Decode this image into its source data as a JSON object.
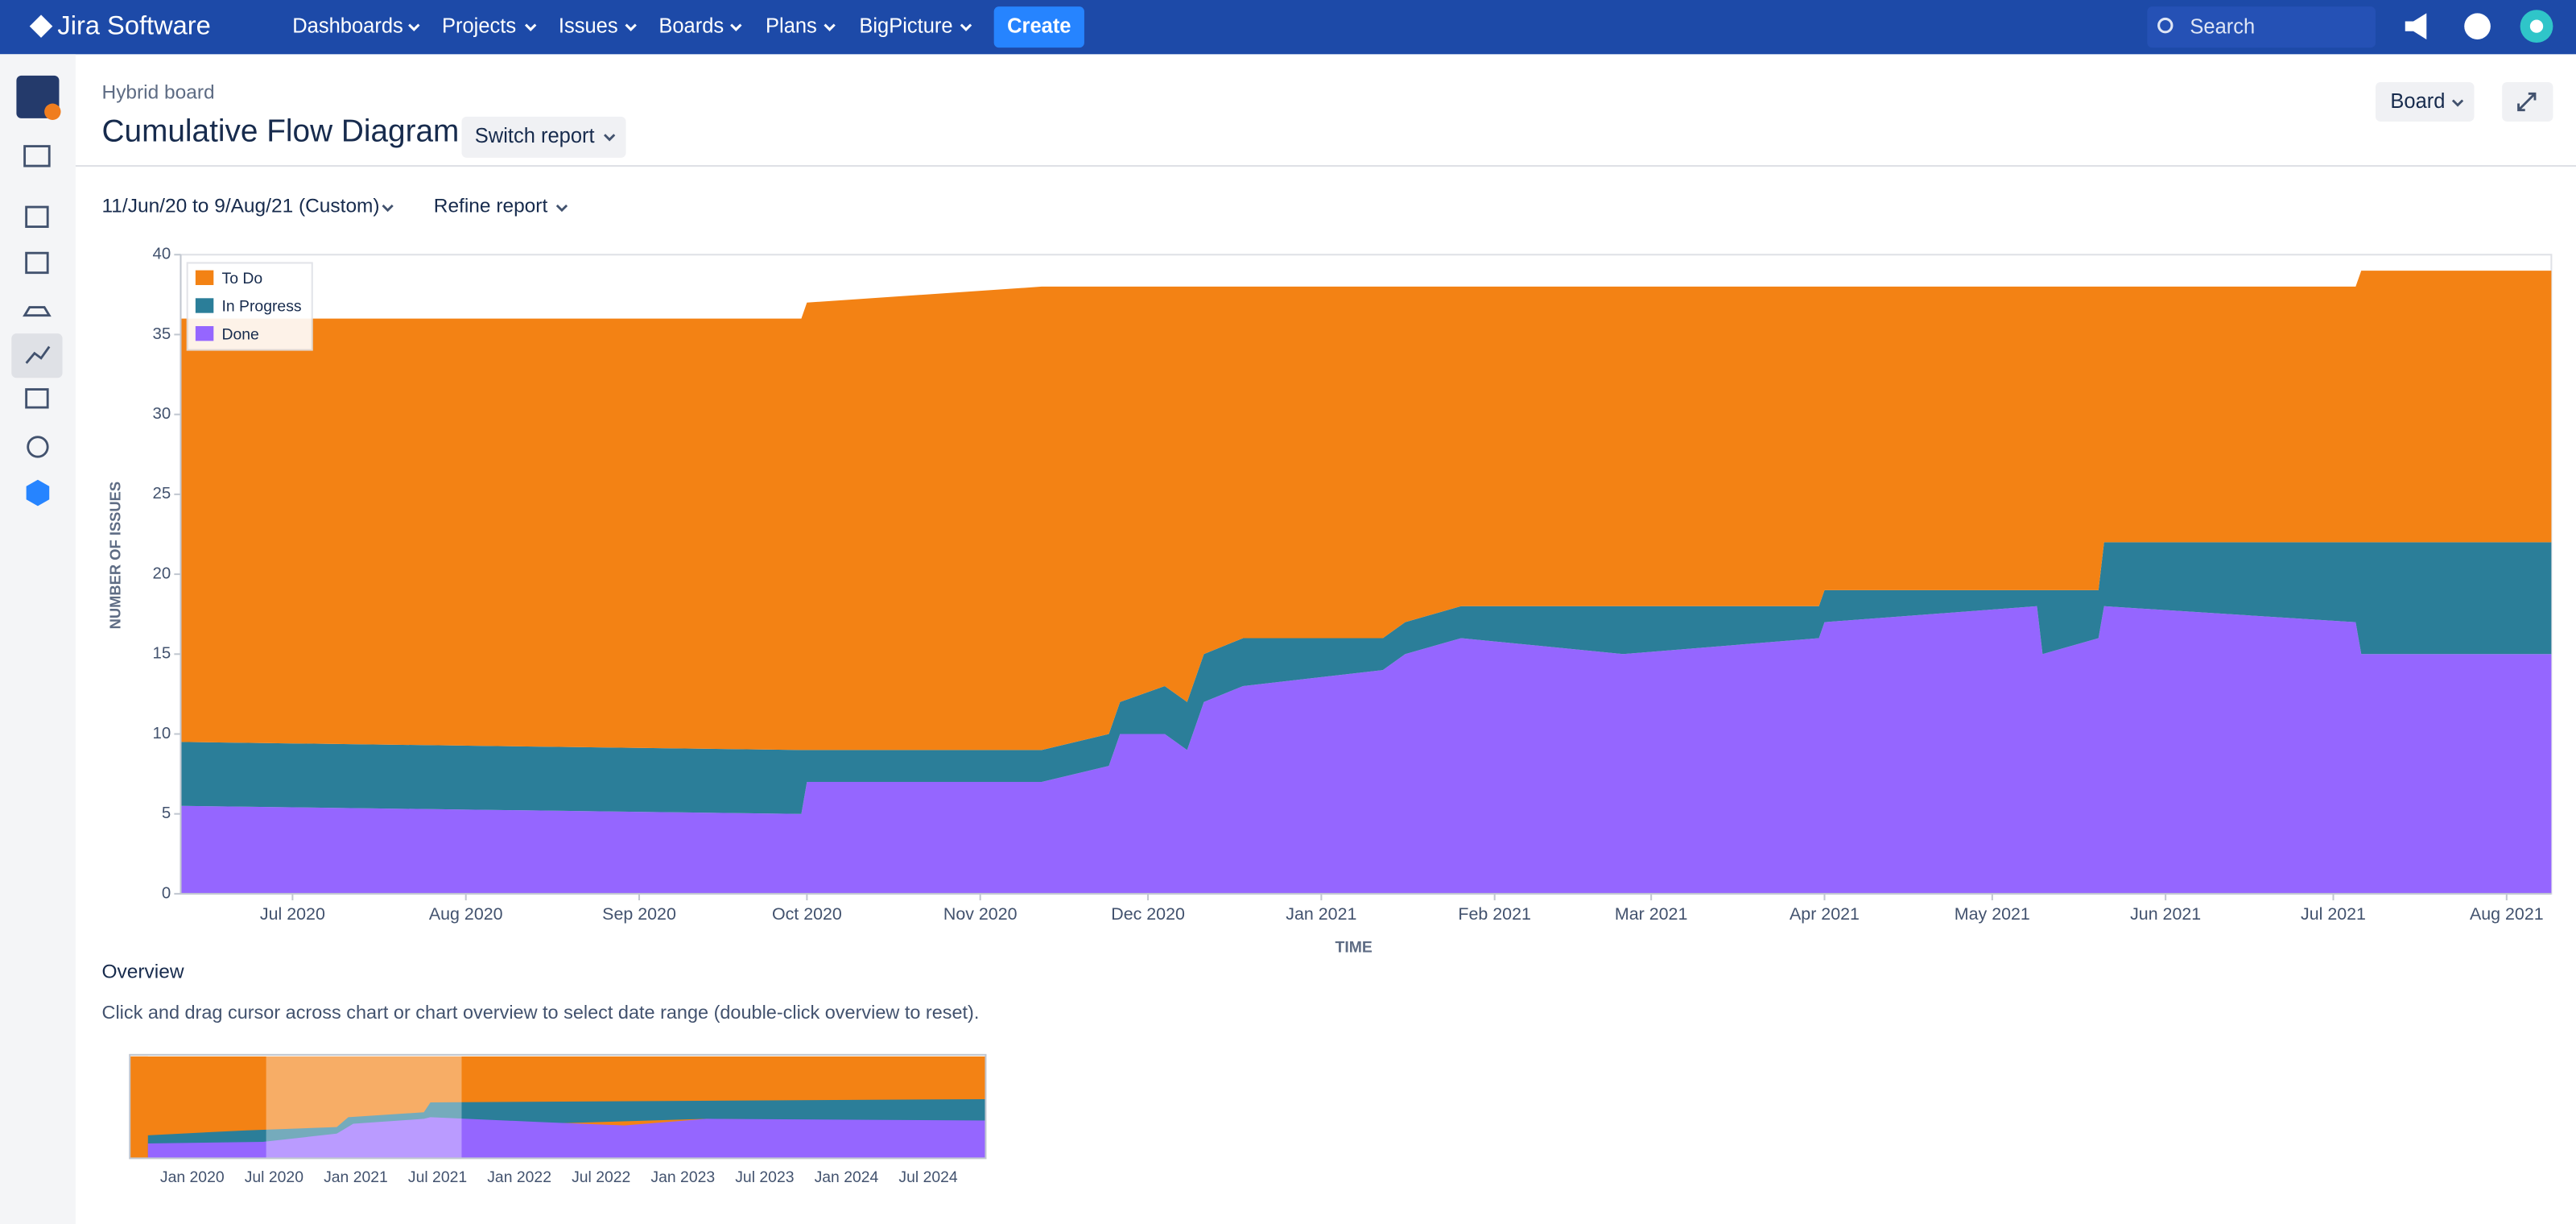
{
  "nav": {
    "logo": "Jira Software",
    "items": [
      "Dashboards",
      "Projects",
      "Issues",
      "Boards",
      "Plans",
      "BigPicture"
    ],
    "create": "Create",
    "search": "Search"
  },
  "header": {
    "breadcrumb": "Hybrid board",
    "title": "Cumulative Flow Diagram",
    "switch_report": "Switch report",
    "board": "Board"
  },
  "filters": {
    "date_range": "11/Jun/20 to 9/Aug/21 (Custom)",
    "refine": "Refine report"
  },
  "chart_data": {
    "type": "stacked-area",
    "y_label": "NUMBER OF ISSUES",
    "x_label": "TIME",
    "x": [
      "2020-06-11",
      "2020-09-30",
      "2020-10-01",
      "2020-11-12",
      "2020-11-24",
      "2020-11-26",
      "2020-12-04",
      "2020-12-08",
      "2020-12-11",
      "2020-12-18",
      "2021-01-12",
      "2021-01-16",
      "2021-01-26",
      "2021-02-24",
      "2021-03-31",
      "2021-04-01",
      "2021-05-09",
      "2021-05-10",
      "2021-05-20",
      "2021-05-21",
      "2021-07-05",
      "2021-07-06",
      "2021-08-09"
    ],
    "series": [
      {
        "name": "To Do",
        "color": "#f38214",
        "values": [
          26.5,
          27,
          28,
          29,
          28,
          26,
          25,
          26,
          23,
          22,
          22,
          21,
          20,
          20,
          20,
          19,
          19,
          19,
          19,
          16,
          16,
          17,
          17
        ]
      },
      {
        "name": "In Progress",
        "color": "#2b7e99",
        "values": [
          4,
          4,
          2,
          2,
          2,
          2,
          3,
          3,
          3,
          3,
          2,
          2,
          2,
          3,
          2,
          2,
          1,
          4,
          3,
          4,
          5,
          7,
          7
        ]
      },
      {
        "name": "Done",
        "color": "#9566ff",
        "values": [
          5.5,
          5,
          7,
          7,
          8,
          10,
          10,
          9,
          12,
          13,
          14,
          15,
          16,
          15,
          16,
          17,
          18,
          15,
          16,
          18,
          17,
          15,
          15
        ]
      }
    ],
    "xlim": [
      "2020-06-11",
      "2021-08-09"
    ],
    "xticks": [
      {
        "value": "2020-07-01",
        "label": "Jul 2020"
      },
      {
        "value": "2020-08-01",
        "label": "Aug 2020"
      },
      {
        "value": "2020-09-01",
        "label": "Sep 2020"
      },
      {
        "value": "2020-10-01",
        "label": "Oct 2020"
      },
      {
        "value": "2020-11-01",
        "label": "Nov 2020"
      },
      {
        "value": "2020-12-01",
        "label": "Dec 2020"
      },
      {
        "value": "2021-01-01",
        "label": "Jan 2021"
      },
      {
        "value": "2021-02-01",
        "label": "Feb 2021"
      },
      {
        "value": "2021-03-01",
        "label": "Mar 2021"
      },
      {
        "value": "2021-04-01",
        "label": "Apr 2021"
      },
      {
        "value": "2021-05-01",
        "label": "May 2021"
      },
      {
        "value": "2021-06-01",
        "label": "Jun 2021"
      },
      {
        "value": "2021-07-01",
        "label": "Jul 2021"
      },
      {
        "value": "2021-08-01",
        "label": "Aug 2021"
      }
    ],
    "ylim": [
      0,
      40
    ],
    "yticks": [
      0,
      5,
      10,
      15,
      20,
      25,
      30,
      35,
      40
    ],
    "legend": "top-left"
  },
  "overview": {
    "title": "Overview",
    "hint": "Click and drag cursor across chart or chart overview to select date range (double-click overview to reset).",
    "ticks": [
      "Jan 2020",
      "Jul 2020",
      "Jan 2021",
      "Jul 2021",
      "Jan 2022",
      "Jul 2022",
      "Jan 2023",
      "Jul 2023",
      "Jan 2024",
      "Jul 2024"
    ]
  }
}
